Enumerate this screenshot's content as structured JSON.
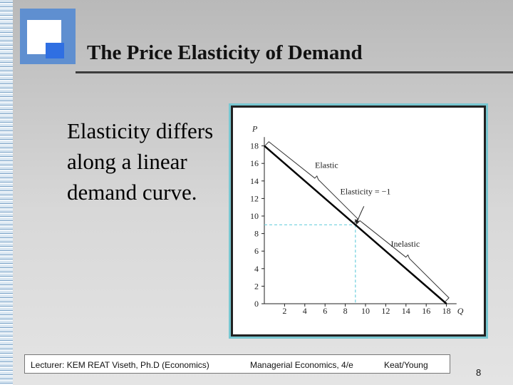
{
  "slide": {
    "title": "The Price Elasticity of Demand",
    "bullet_text": "Elasticity differs along a linear demand curve.",
    "page_number": "8"
  },
  "footer": {
    "lecturer": "Lecturer: KEM REAT Viseth, Ph.D (Economics)",
    "course": "Managerial Economics, 4/e",
    "authors": "Keat/Young"
  },
  "chart_data": {
    "type": "line",
    "xlabel": "Q",
    "ylabel": "P",
    "xlim": [
      0,
      19
    ],
    "ylim": [
      0,
      19
    ],
    "x_ticks": [
      2,
      4,
      6,
      8,
      10,
      12,
      14,
      16,
      18
    ],
    "y_ticks": [
      0,
      2,
      4,
      6,
      8,
      10,
      12,
      14,
      16,
      18
    ],
    "series": [
      {
        "points": [
          [
            0,
            18
          ],
          [
            18,
            0
          ]
        ]
      }
    ],
    "unit_elastic_point": [
      9,
      9
    ],
    "annotations": [
      {
        "text": "Elastic",
        "at": [
          5.0,
          15.5
        ]
      },
      {
        "text": "Elasticity = −1",
        "at": [
          7.5,
          12.5
        ]
      },
      {
        "text": "Inelastic",
        "at": [
          12.5,
          6.5
        ]
      }
    ],
    "colors": {
      "curve": "#000000",
      "guide": "#6fd0de"
    }
  }
}
